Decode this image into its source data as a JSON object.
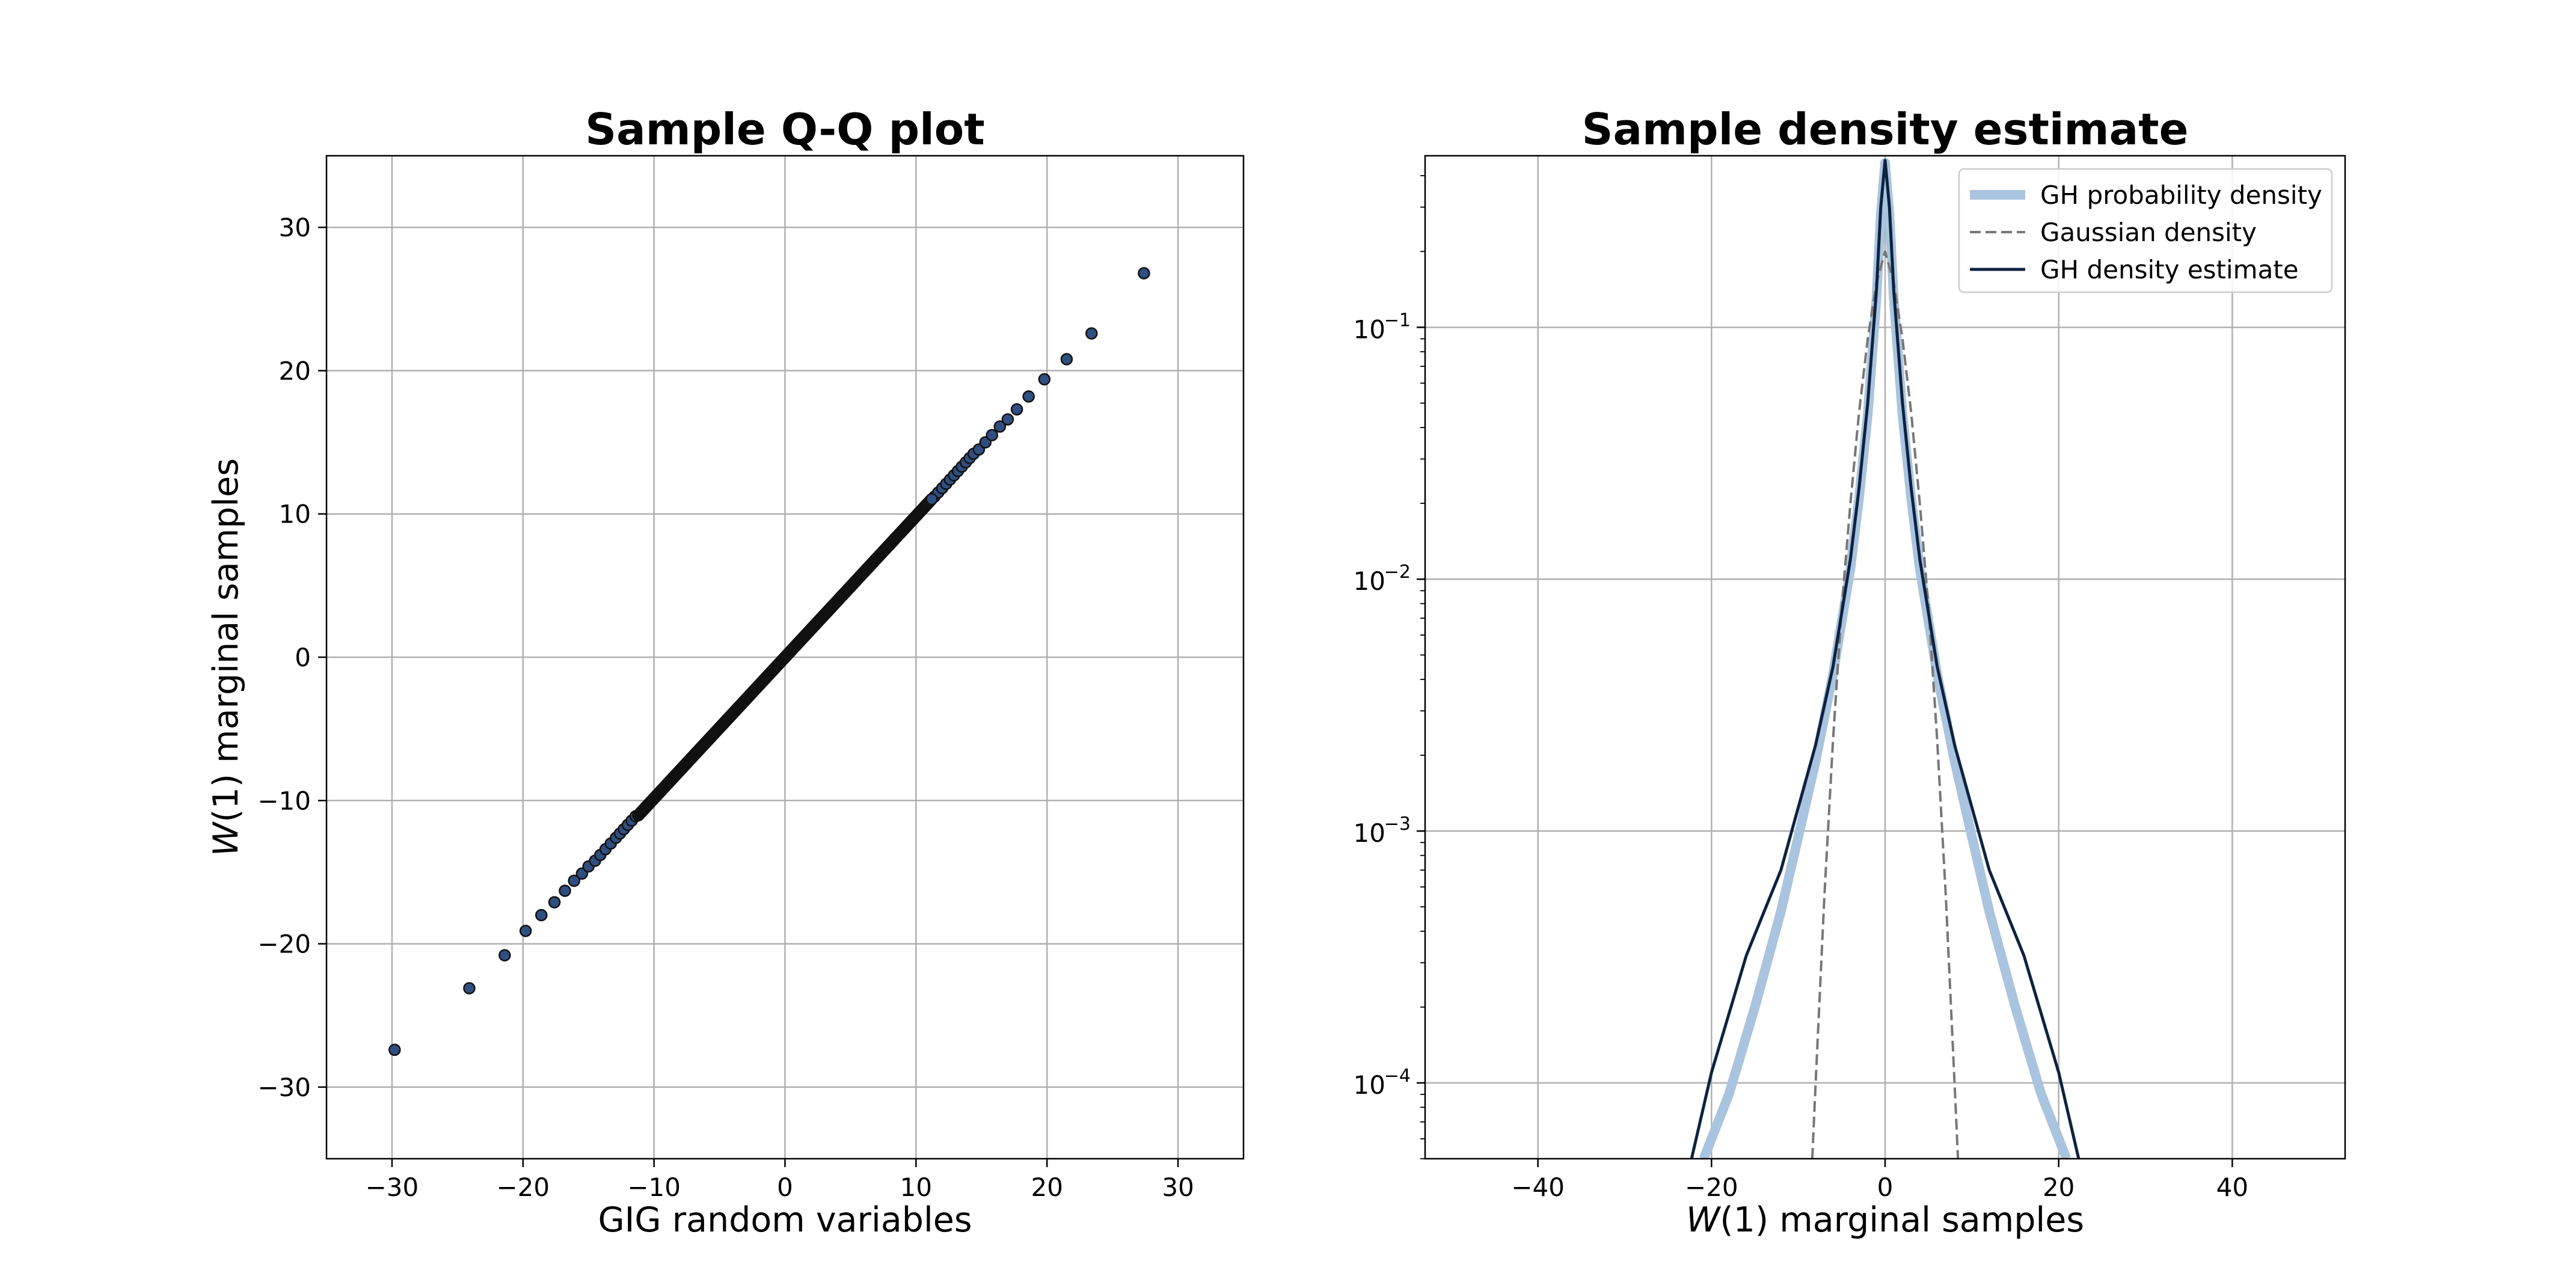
{
  "chart_data": [
    {
      "type": "scatter",
      "title": "Sample Q-Q plot",
      "xlabel": "GIG random variables",
      "ylabel": "W(1) marginal samples",
      "xlim": [
        -35,
        35
      ],
      "ylim": [
        -35,
        35
      ],
      "xticks": [
        -30,
        -20,
        -10,
        0,
        10,
        20,
        30
      ],
      "yticks": [
        -30,
        -20,
        -10,
        0,
        10,
        20,
        30
      ],
      "xtick_labels": [
        "−30",
        "−20",
        "−10",
        "0",
        "10",
        "20",
        "30"
      ],
      "ytick_labels": [
        "−30",
        "−20",
        "−10",
        "0",
        "10",
        "20",
        "30"
      ],
      "grid": true,
      "marker_color": "#2f4f7f",
      "marker_edge": "#111111",
      "tail_points": [
        [
          -29.8,
          -27.4
        ],
        [
          -24.1,
          -23.1
        ],
        [
          -21.4,
          -20.8
        ],
        [
          -19.8,
          -19.1
        ],
        [
          -18.6,
          -18.0
        ],
        [
          -17.6,
          -17.1
        ],
        [
          -16.8,
          -16.3
        ],
        [
          -16.1,
          -15.6
        ],
        [
          -15.5,
          -15.1
        ],
        [
          -15.0,
          -14.6
        ],
        [
          -14.5,
          -14.2
        ],
        [
          -14.1,
          -13.8
        ],
        [
          -13.7,
          -13.4
        ],
        [
          -13.3,
          -13.0
        ],
        [
          -12.9,
          -12.6
        ],
        [
          -12.6,
          -12.3
        ],
        [
          -12.3,
          -12.0
        ],
        [
          -12.0,
          -11.7
        ],
        [
          -11.7,
          -11.4
        ],
        [
          -11.4,
          -11.1
        ],
        [
          11.4,
          11.2
        ],
        [
          11.7,
          11.5
        ],
        [
          12.0,
          11.8
        ],
        [
          12.3,
          12.1
        ],
        [
          12.6,
          12.4
        ],
        [
          12.9,
          12.7
        ],
        [
          13.2,
          13.0
        ],
        [
          13.5,
          13.3
        ],
        [
          13.8,
          13.6
        ],
        [
          14.1,
          13.9
        ],
        [
          14.4,
          14.2
        ],
        [
          14.8,
          14.5
        ],
        [
          15.3,
          15.0
        ],
        [
          15.8,
          15.5
        ],
        [
          16.4,
          16.1
        ],
        [
          17.0,
          16.6
        ],
        [
          17.7,
          17.3
        ],
        [
          18.6,
          18.2
        ],
        [
          19.8,
          19.4
        ],
        [
          21.5,
          20.8
        ],
        [
          23.4,
          22.6
        ],
        [
          27.4,
          26.8
        ]
      ],
      "dense_range": [
        -11.2,
        11.2
      ],
      "dense_slope": 0.985
    },
    {
      "type": "line",
      "title": "Sample density estimate",
      "xlabel": "W(1) marginal samples",
      "ylabel": "",
      "xlim": [
        -53,
        53
      ],
      "ylim": [
        5e-05,
        0.48
      ],
      "yscale": "log",
      "xticks": [
        -40,
        -20,
        0,
        20,
        40
      ],
      "xtick_labels": [
        "−40",
        "−20",
        "0",
        "20",
        "40"
      ],
      "yticks": [
        0.0001,
        0.001,
        0.01,
        0.1
      ],
      "ytick_labels": [
        "10",
        "10",
        "10",
        "10"
      ],
      "ytick_exponents": [
        "−4",
        "−3",
        "−2",
        "−1"
      ],
      "grid": true,
      "legend_position": "top-right",
      "series": [
        {
          "name": "GH probability density",
          "color": "#a9c4de",
          "style": "solid-thick",
          "x": [
            -20.9,
            -18,
            -15,
            -12,
            -10,
            -8,
            -6,
            -4,
            -3,
            -2,
            -1,
            -0.5,
            0,
            0.5,
            1,
            2,
            3,
            4,
            6,
            8,
            10,
            12,
            15,
            18,
            20.9
          ],
          "y": [
            5e-05,
            9e-05,
            0.0002,
            0.00048,
            0.00095,
            0.0019,
            0.0042,
            0.011,
            0.021,
            0.045,
            0.13,
            0.28,
            0.45,
            0.28,
            0.13,
            0.045,
            0.021,
            0.011,
            0.0042,
            0.0019,
            0.00095,
            0.00048,
            0.0002,
            9e-05,
            5e-05
          ]
        },
        {
          "name": "Gaussian density",
          "color": "#777777",
          "style": "dashed",
          "x": [
            -8.4,
            -8,
            -7,
            -6,
            -5,
            -4,
            -3,
            -2,
            -1,
            0,
            1,
            2,
            3,
            4,
            5,
            6,
            7,
            8,
            8.4
          ],
          "y": [
            5e-05,
            0.0001,
            0.00055,
            0.0023,
            0.0077,
            0.02,
            0.046,
            0.09,
            0.15,
            0.2,
            0.15,
            0.09,
            0.046,
            0.02,
            0.0077,
            0.0023,
            0.00055,
            0.0001,
            5e-05
          ]
        },
        {
          "name": "GH density estimate",
          "color": "#0e2240",
          "style": "solid",
          "x": [
            -22.3,
            -20,
            -16,
            -12,
            -8,
            -6,
            -4,
            -3,
            -2,
            -1,
            -0.5,
            0,
            0.5,
            1,
            2,
            3,
            4,
            6,
            8,
            12,
            16,
            20,
            22.3
          ],
          "y": [
            5e-05,
            0.00011,
            0.00032,
            0.0007,
            0.0022,
            0.0045,
            0.012,
            0.023,
            0.05,
            0.14,
            0.3,
            0.46,
            0.3,
            0.14,
            0.05,
            0.023,
            0.012,
            0.0045,
            0.0022,
            0.0007,
            0.00032,
            0.00011,
            5e-05
          ]
        }
      ]
    }
  ]
}
